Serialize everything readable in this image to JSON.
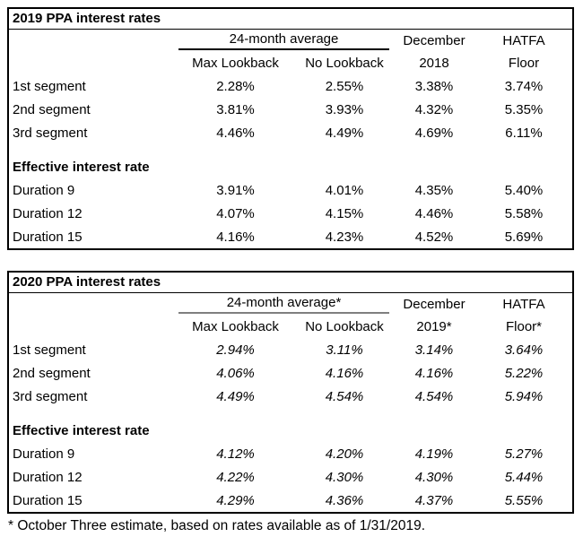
{
  "page": {
    "background_color": "#ffffff",
    "text_color": "#000000"
  },
  "footnote": "* October Three estimate, based on rates available as of 1/31/2019.",
  "tables": [
    {
      "title": "2019 PPA interest rates",
      "group_header": "24-month average",
      "group_underline_color": "#000000",
      "dec_header_line1": "December",
      "dec_header_line2": "2018",
      "hatfa_header_line1": "HATFA",
      "hatfa_header_line2": "Floor",
      "sub_headers": [
        "Max Lookback",
        "No Lookback"
      ],
      "segment_rows": [
        {
          "label": "1st segment",
          "values": [
            "2.28%",
            "2.55%",
            "3.38%",
            "3.74%"
          ]
        },
        {
          "label": "2nd segment",
          "values": [
            "3.81%",
            "3.93%",
            "4.32%",
            "5.35%"
          ]
        },
        {
          "label": "3rd segment",
          "values": [
            "4.46%",
            "4.49%",
            "4.69%",
            "6.11%"
          ]
        }
      ],
      "section_label": "Effective interest rate",
      "duration_rows": [
        {
          "label": "Duration 9",
          "values": [
            "3.91%",
            "4.01%",
            "4.35%",
            "5.40%"
          ]
        },
        {
          "label": "Duration 12",
          "values": [
            "4.07%",
            "4.15%",
            "4.46%",
            "5.58%"
          ]
        },
        {
          "label": "Duration 15",
          "values": [
            "4.16%",
            "4.23%",
            "4.52%",
            "5.69%"
          ]
        }
      ],
      "values_italic": false
    },
    {
      "title": "2020 PPA interest rates",
      "group_header": "24-month average*",
      "group_underline_color": "#7f7f7f",
      "dec_header_line1": "December",
      "dec_header_line2": "2019*",
      "hatfa_header_line1": "HATFA",
      "hatfa_header_line2": "Floor*",
      "sub_headers": [
        "Max Lookback",
        "No Lookback"
      ],
      "segment_rows": [
        {
          "label": "1st segment",
          "values": [
            "2.94%",
            "3.11%",
            "3.14%",
            "3.64%"
          ]
        },
        {
          "label": "2nd segment",
          "values": [
            "4.06%",
            "4.16%",
            "4.16%",
            "5.22%"
          ]
        },
        {
          "label": "3rd segment",
          "values": [
            "4.49%",
            "4.54%",
            "4.54%",
            "5.94%"
          ]
        }
      ],
      "section_label": "Effective interest rate",
      "duration_rows": [
        {
          "label": "Duration 9",
          "values": [
            "4.12%",
            "4.20%",
            "4.19%",
            "5.27%"
          ]
        },
        {
          "label": "Duration 12",
          "values": [
            "4.22%",
            "4.30%",
            "4.30%",
            "5.44%"
          ]
        },
        {
          "label": "Duration 15",
          "values": [
            "4.29%",
            "4.36%",
            "4.37%",
            "5.55%"
          ]
        }
      ],
      "values_italic": true
    }
  ]
}
